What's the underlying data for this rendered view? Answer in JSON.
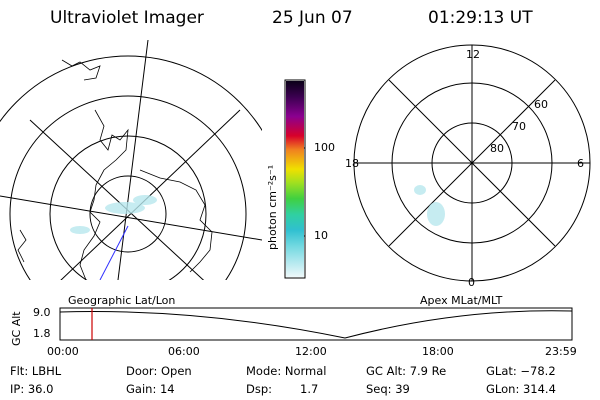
{
  "header": {
    "instrument": "Ultraviolet Imager",
    "date": "25 Jun 07",
    "time": "01:29:13 UT"
  },
  "colorbar": {
    "unit_label": "photon cm⁻²s⁻¹",
    "ticks": [
      "100",
      "10"
    ],
    "colors": [
      "#1a0030",
      "#3b0050",
      "#5a0070",
      "#8a0090",
      "#b80060",
      "#d8002a",
      "#e8402a",
      "#f08020",
      "#f4b010",
      "#f0e000",
      "#a0e020",
      "#40d040",
      "#30d0a0",
      "#30c0d0",
      "#70d8e0",
      "#b0e8ee",
      "#e0f4f6"
    ]
  },
  "maps": {
    "left_label": "Geographic Lat/Lon",
    "right_label": "Apex MLat/MLT",
    "right_mlt_labels": [
      "12",
      "18",
      "6",
      "0"
    ],
    "right_lat_labels": [
      "60",
      "70",
      "80"
    ]
  },
  "timeline": {
    "ylabel": "GC Alt",
    "ytick_top": "9.0",
    "ytick_bottom": "1.8",
    "xticks": [
      "00:00",
      "06:00",
      "12:00",
      "18:00",
      "23:59"
    ],
    "marker_color": "#cc0000"
  },
  "info": {
    "flt": "Flt: LBHL",
    "door": "Door: Open",
    "mode": "Mode: Normal",
    "gc_alt": "GC Alt: 7.9 Re",
    "glat": "GLat: −78.2",
    "ip": "IP: 36.0",
    "gain": "Gain: 14",
    "dsp_label": "Dsp:",
    "dsp_value": "1.7",
    "seq": "Seq: 39",
    "glon": "GLon: 314.4"
  }
}
